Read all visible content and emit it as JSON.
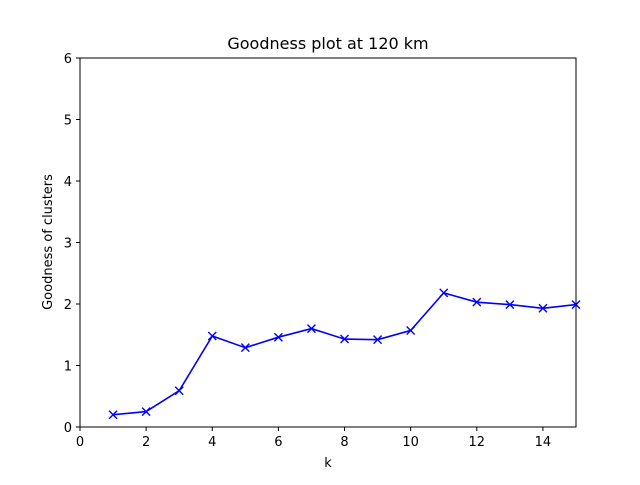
{
  "chart_data": {
    "type": "line",
    "title": "Goodness plot at 120 km",
    "xlabel": "k",
    "ylabel": "Goodness of clusters",
    "xlim": [
      0,
      15
    ],
    "ylim": [
      0,
      6
    ],
    "xticks": [
      0,
      2,
      4,
      6,
      8,
      10,
      12,
      14
    ],
    "yticks": [
      0,
      1,
      2,
      3,
      4,
      5,
      6
    ],
    "grid": false,
    "marker": "x",
    "line_color": "#0000ff",
    "series": [
      {
        "x": [
          1,
          2,
          3,
          4,
          5,
          6,
          7,
          8,
          9,
          10,
          11,
          12,
          13,
          14,
          15
        ],
        "values": [
          0.2,
          0.25,
          0.59,
          1.48,
          1.29,
          1.46,
          1.6,
          1.43,
          1.42,
          1.57,
          2.18,
          2.03,
          1.99,
          1.93,
          1.99
        ]
      }
    ]
  }
}
